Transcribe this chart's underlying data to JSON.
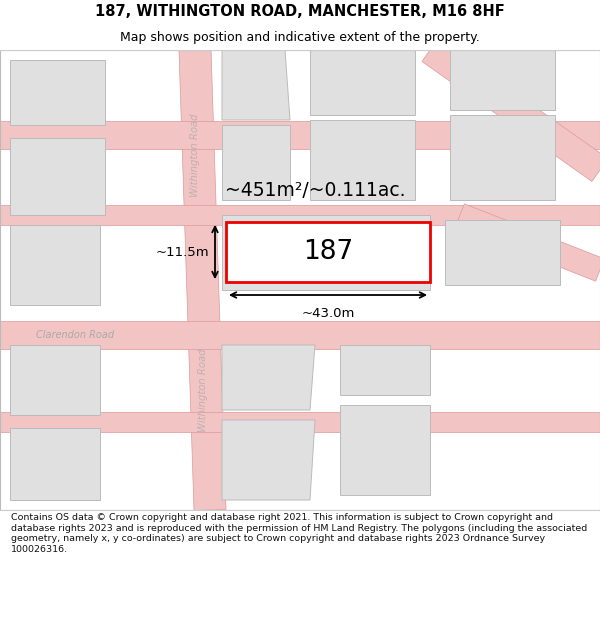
{
  "title_line1": "187, WITHINGTON ROAD, MANCHESTER, M16 8HF",
  "title_line2": "Map shows position and indicative extent of the property.",
  "footer_text": "Contains OS data © Crown copyright and database right 2021. This information is subject to Crown copyright and database rights 2023 and is reproduced with the permission of HM Land Registry. The polygons (including the associated geometry, namely x, y co-ordinates) are subject to Crown copyright and database rights 2023 Ordnance Survey 100026316.",
  "area_label": "~451m²/~0.111ac.",
  "width_label": "~43.0m",
  "height_label": "~11.5m",
  "property_number": "187",
  "bg_color": "#ffffff",
  "map_bg": "#f8f8f8",
  "road_color": "#f2c4c4",
  "road_border_color": "#dd9999",
  "building_fill": "#e0e0e0",
  "building_edge": "#bbbbbb",
  "highlight_fill": "#ffffff",
  "highlight_edge": "#ee0000",
  "road_label_color": "#c0b0b0",
  "street_label_color": "#aaaaaa",
  "dim_color": "#000000",
  "title_color": "#000000",
  "footer_color": "#111111",
  "separator_color": "#cccccc"
}
